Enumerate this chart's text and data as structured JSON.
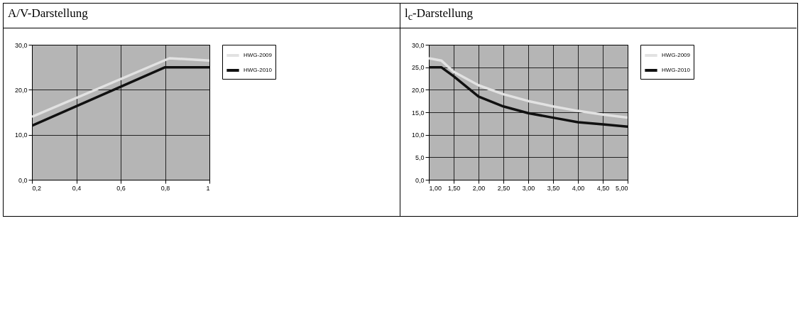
{
  "chart_data": [
    {
      "type": "line",
      "title": "A/V-Darstellung",
      "xlim": [
        0.2,
        1
      ],
      "xticks": [
        {
          "value": 0.2,
          "label": "0,2"
        },
        {
          "value": 0.4,
          "label": "0,4"
        },
        {
          "value": 0.6,
          "label": "0,6"
        },
        {
          "value": 0.8,
          "label": "0,8"
        },
        1
      ],
      "ylim": [
        0,
        30
      ],
      "yticks": [
        {
          "value": 0,
          "label": "0,0"
        },
        {
          "value": 10,
          "label": "10,0"
        },
        {
          "value": 20,
          "label": "20,0"
        },
        {
          "value": 30,
          "label": "30,0"
        }
      ],
      "grid": true,
      "legend": "right",
      "marker": "none",
      "line_style": "solid",
      "series": [
        {
          "name": "HWG-2009",
          "color": "#e2e2e2",
          "x": [
            0.2,
            0.82,
            1
          ],
          "values": [
            14,
            27,
            26.5
          ]
        },
        {
          "name": "HWG-2010",
          "color": "#111111",
          "x": [
            0.2,
            0.8,
            1
          ],
          "values": [
            12,
            25,
            25
          ]
        }
      ]
    },
    {
      "type": "line",
      "title": "l$_{c}$-Darstellung",
      "xlim": [
        1,
        5
      ],
      "xticks": [
        {
          "value": 1,
          "label": "1,00"
        },
        {
          "value": 1.5,
          "label": "1,50"
        },
        {
          "value": 2,
          "label": "2,00"
        },
        {
          "value": 2.5,
          "label": "2,50"
        },
        {
          "value": 3,
          "label": "3,00"
        },
        {
          "value": 3.5,
          "label": "3,50"
        },
        {
          "value": 4,
          "label": "4,00"
        },
        {
          "value": 4.5,
          "label": "4,50"
        },
        {
          "value": 5,
          "label": "5,00"
        }
      ],
      "ylim": [
        0,
        30
      ],
      "yticks": [
        {
          "value": 0,
          "label": "0,0"
        },
        {
          "value": 5,
          "label": "5,0"
        },
        {
          "value": 10,
          "label": "10,0"
        },
        {
          "value": 15,
          "label": "15,0"
        },
        {
          "value": 20,
          "label": "20,0"
        },
        {
          "value": 25,
          "label": "25,0"
        },
        {
          "value": 30,
          "label": "30,0"
        }
      ],
      "grid": true,
      "legend": "right",
      "marker": "none",
      "line_style": "solid",
      "series": [
        {
          "name": "HWG-2009",
          "color": "#e2e2e2",
          "x": [
            1,
            1.25,
            1.5,
            2,
            2.5,
            3,
            3.5,
            4,
            4.5,
            5
          ],
          "values": [
            27,
            26.5,
            24,
            21,
            19,
            17.5,
            16.3,
            15.3,
            14.5,
            13.8
          ]
        },
        {
          "name": "HWG-2010",
          "color": "#111111",
          "x": [
            1,
            1.25,
            1.5,
            2,
            2.5,
            3,
            3.5,
            4,
            4.5,
            5
          ],
          "values": [
            25,
            25,
            23,
            18.5,
            16.3,
            14.8,
            13.8,
            12.8,
            12.3,
            11.8
          ]
        }
      ]
    }
  ]
}
